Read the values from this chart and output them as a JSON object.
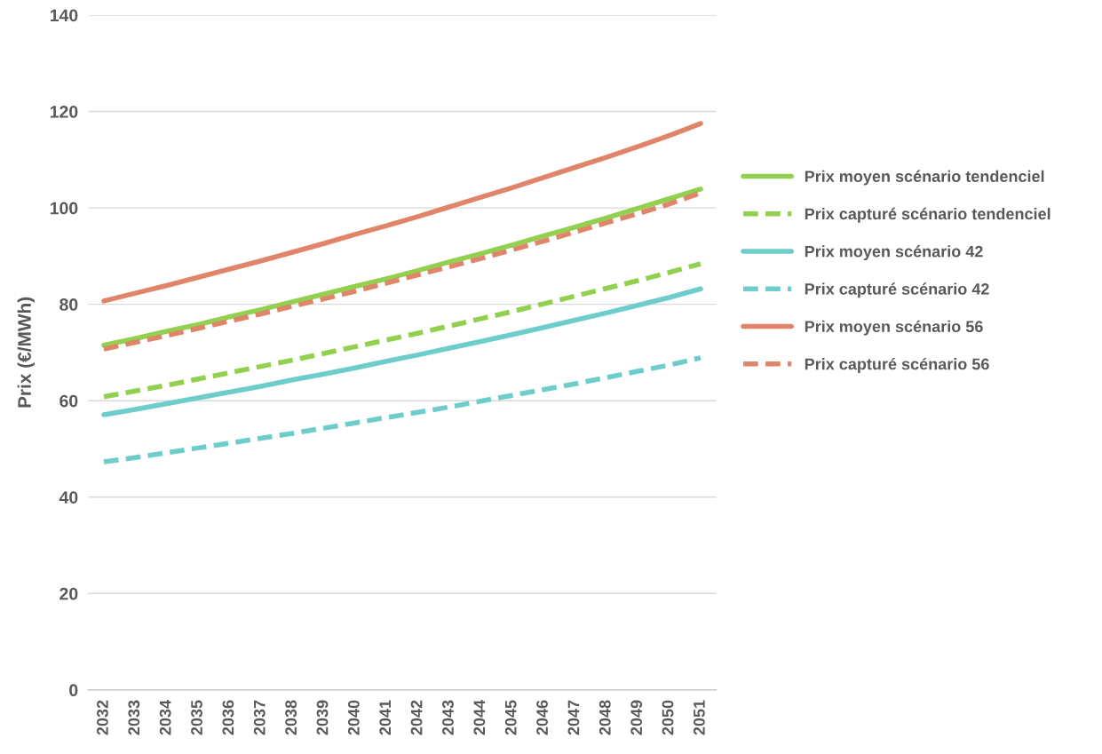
{
  "chart_data": {
    "type": "line",
    "ylabel": "Prix (€/MWh)",
    "categories": [
      "2032",
      "2033",
      "2034",
      "2035",
      "2036",
      "2037",
      "2038",
      "2039",
      "2040",
      "2041",
      "2042",
      "2043",
      "2044",
      "2045",
      "2046",
      "2047",
      "2048",
      "2049",
      "2050",
      "2051"
    ],
    "ylim": [
      0,
      140
    ],
    "yticks": [
      0,
      20,
      40,
      60,
      80,
      100,
      120,
      140
    ],
    "grid": "y",
    "legend": "right",
    "marker": "none",
    "series": [
      {
        "name": "Prix moyen scénario tendenciel",
        "color": "#92d050",
        "line_style": "solid",
        "values": [
          71.5,
          72.9,
          74.4,
          75.8,
          77.4,
          78.9,
          80.5,
          82.1,
          83.7,
          85.3,
          87.0,
          88.8,
          90.5,
          92.3,
          94.2,
          96.0,
          97.9,
          99.9,
          101.9,
          103.9
        ]
      },
      {
        "name": "Prix capturé scénario tendenciel",
        "color": "#92d050",
        "line_style": "dashed",
        "values": [
          60.8,
          62.0,
          63.2,
          64.5,
          65.8,
          67.1,
          68.4,
          69.8,
          71.2,
          72.6,
          74.0,
          75.5,
          77.0,
          78.5,
          80.1,
          81.7,
          83.3,
          84.9,
          86.6,
          88.4
        ]
      },
      {
        "name": "Prix moyen scénario 42",
        "color": "#6dcdca",
        "line_style": "solid",
        "values": [
          57.1,
          58.2,
          59.4,
          60.6,
          61.8,
          63.0,
          64.3,
          65.5,
          66.8,
          68.2,
          69.5,
          70.9,
          72.3,
          73.7,
          75.2,
          76.7,
          78.2,
          79.8,
          81.4,
          83.2
        ]
      },
      {
        "name": "Prix capturé scénario 42",
        "color": "#6dcdca",
        "line_style": "dashed",
        "values": [
          47.3,
          48.2,
          49.2,
          50.2,
          51.2,
          52.2,
          53.2,
          54.3,
          55.4,
          56.5,
          57.6,
          58.7,
          59.9,
          61.1,
          62.3,
          63.5,
          64.8,
          66.1,
          67.4,
          68.9
        ]
      },
      {
        "name": "Prix moyen scénario 56",
        "color": "#e0856a",
        "line_style": "solid",
        "values": [
          80.7,
          82.3,
          83.9,
          85.6,
          87.3,
          89.0,
          90.8,
          92.6,
          94.5,
          96.3,
          98.2,
          100.2,
          102.2,
          104.2,
          106.3,
          108.4,
          110.5,
          112.7,
          115.0,
          117.5
        ]
      },
      {
        "name": "Prix capturé scénario 56",
        "color": "#e0856a",
        "line_style": "dashed",
        "values": [
          70.7,
          72.1,
          73.5,
          75.0,
          76.5,
          78.0,
          79.6,
          81.1,
          82.7,
          84.4,
          86.1,
          87.8,
          89.5,
          91.3,
          93.1,
          95.0,
          96.9,
          98.8,
          100.8,
          103.1
        ]
      }
    ]
  }
}
